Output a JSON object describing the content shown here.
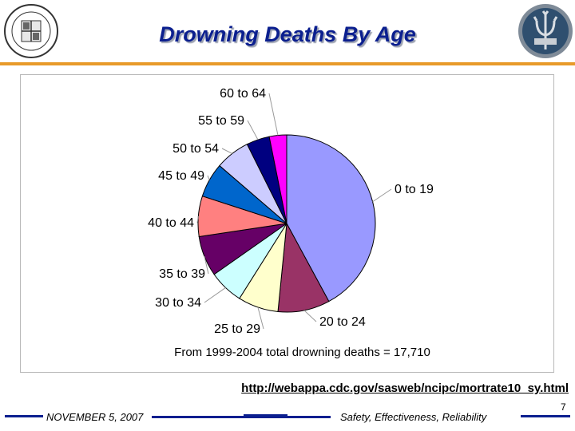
{
  "header": {
    "title": "Drowning Deaths By Age"
  },
  "chart_data": {
    "type": "pie",
    "title": "",
    "categories": [
      "0 to 19",
      "20 to 24",
      "25 to 29",
      "30 to 34",
      "35 to 39",
      "40 to 44",
      "45 to 49",
      "50 to 54",
      "55 to 59",
      "60 to 64"
    ],
    "values": [
      40,
      9,
      7,
      6,
      7,
      7,
      6,
      6,
      4,
      3
    ],
    "colors": [
      "#9999ff",
      "#993366",
      "#ffffcc",
      "#ccffff",
      "#660066",
      "#ff8080",
      "#0066cc",
      "#ccccff",
      "#000080",
      "#ff00ff"
    ],
    "legend": "none",
    "caption": "From 1999-2004 total drowning deaths = 17,710"
  },
  "source_link": "http://webappa.cdc.gov/sasweb/ncipc/mortrate10_sy.html",
  "footer": {
    "date": "NOVEMBER 5, 2007",
    "motto": "Safety, Effectiveness, Reliability",
    "page_number": "7"
  }
}
